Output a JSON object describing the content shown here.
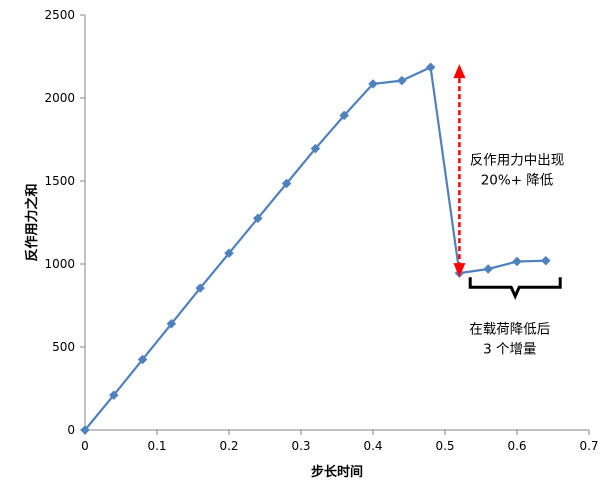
{
  "chart_data": {
    "type": "line",
    "xlabel": "步长时间",
    "ylabel": "反作用力之和",
    "xlim": [
      0,
      0.7
    ],
    "ylim": [
      0,
      2500
    ],
    "x_ticks": [
      "0",
      "0.1",
      "0.2",
      "0.3",
      "0.4",
      "0.5",
      "0.6",
      "0.7"
    ],
    "y_ticks": [
      "0",
      "500",
      "1000",
      "1500",
      "2000",
      "2500"
    ],
    "grid": false,
    "legend": "none",
    "colors": {
      "series": "#4f81bd",
      "arrow": "#ff0000",
      "brace": "#000000"
    },
    "series": [
      {
        "x": [
          0,
          0.04,
          0.08,
          0.12,
          0.16,
          0.2,
          0.24,
          0.28,
          0.32,
          0.36,
          0.4,
          0.44,
          0.48,
          0.52,
          0.56,
          0.6,
          0.64
        ],
        "y": [
          0,
          210,
          425,
          640,
          855,
          1065,
          1275,
          1485,
          1695,
          1895,
          2085,
          2105,
          2185,
          945,
          970,
          1015,
          1020
        ]
      }
    ],
    "annotations": [
      {
        "lines": [
          "反作用力中出现",
          "20%+  降低"
        ],
        "x": 0.6,
        "y": 1600,
        "align": "center"
      },
      {
        "lines": [
          "在载荷降低后",
          "3  个增量"
        ],
        "x": 0.59,
        "y": 580,
        "align": "center"
      }
    ],
    "arrow": {
      "x": 0.52,
      "y_from": 2180,
      "y_to": 945
    },
    "brace": {
      "x_from": 0.535,
      "x_to": 0.66,
      "y": 860
    }
  }
}
